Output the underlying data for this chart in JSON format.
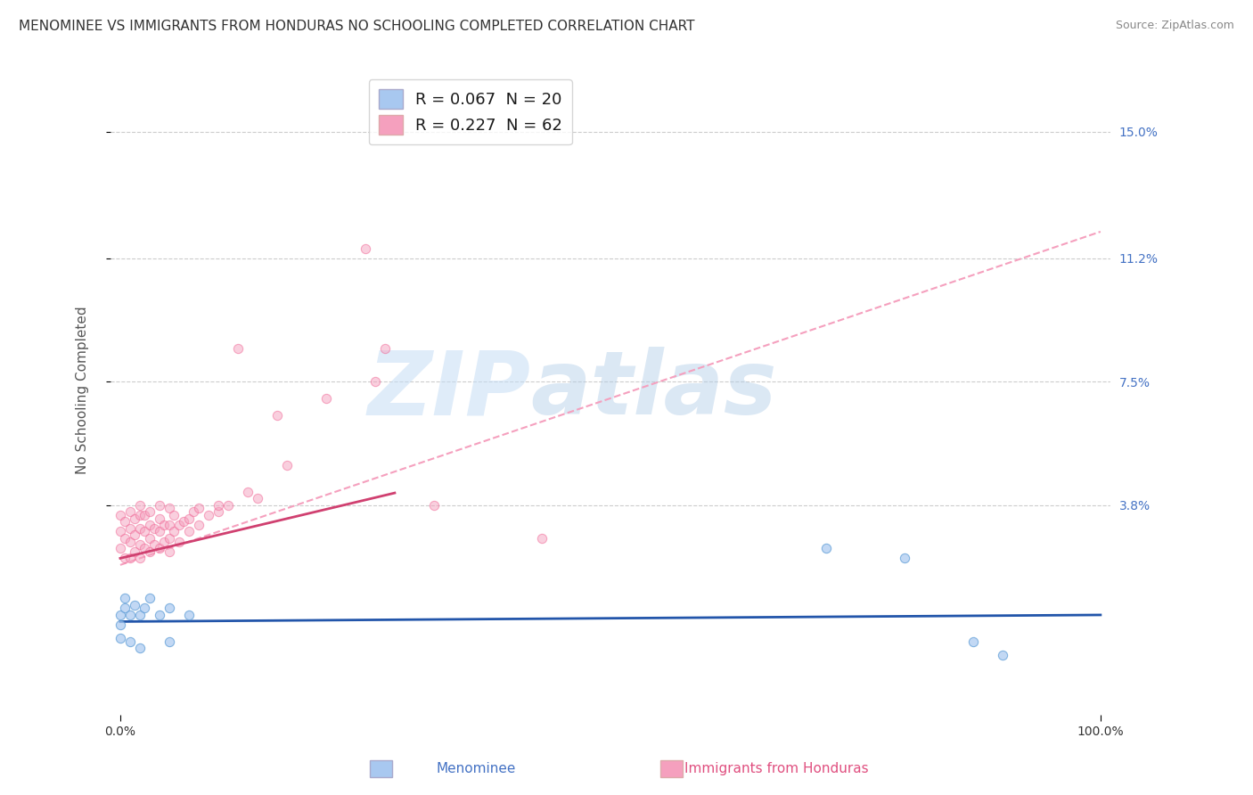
{
  "title": "MENOMINEE VS IMMIGRANTS FROM HONDURAS NO SCHOOLING COMPLETED CORRELATION CHART",
  "source": "Source: ZipAtlas.com",
  "ylabel": "No Schooling Completed",
  "ytick_labels": [
    "15.0%",
    "11.2%",
    "7.5%",
    "3.8%"
  ],
  "ytick_values": [
    0.15,
    0.112,
    0.075,
    0.038
  ],
  "xlim": [
    -0.01,
    1.01
  ],
  "ylim": [
    -0.025,
    0.17
  ],
  "legend_label_blue": "R = 0.067  N = 20",
  "legend_label_pink": "R = 0.227  N = 62",
  "legend_numbers_color": "#1565c0",
  "bottom_label_blue": "Menominee",
  "bottom_label_pink": "Immigrants from Honduras",
  "bottom_label_color_blue": "#4472c4",
  "bottom_label_color_pink": "#e05080",
  "watermark_zip": "ZIP",
  "watermark_atlas": "atlas",
  "watermark_color": "#c8dff5",
  "series_blue": {
    "x": [
      0.0,
      0.0,
      0.0,
      0.005,
      0.005,
      0.01,
      0.01,
      0.015,
      0.02,
      0.02,
      0.025,
      0.03,
      0.04,
      0.05,
      0.05,
      0.07,
      0.72,
      0.8,
      0.87,
      0.9
    ],
    "y": [
      0.005,
      0.002,
      -0.002,
      0.007,
      0.01,
      0.005,
      -0.003,
      0.008,
      0.005,
      -0.005,
      0.007,
      0.01,
      0.005,
      0.007,
      -0.003,
      0.005,
      0.025,
      0.022,
      -0.003,
      -0.007
    ],
    "color": "#a8c8f0",
    "edgecolor": "#5b9bd5",
    "size": 55,
    "alpha": 0.7
  },
  "series_pink": {
    "x": [
      0.0,
      0.0,
      0.0,
      0.005,
      0.005,
      0.005,
      0.01,
      0.01,
      0.01,
      0.01,
      0.015,
      0.015,
      0.015,
      0.02,
      0.02,
      0.02,
      0.02,
      0.02,
      0.025,
      0.025,
      0.025,
      0.03,
      0.03,
      0.03,
      0.03,
      0.035,
      0.035,
      0.04,
      0.04,
      0.04,
      0.04,
      0.045,
      0.045,
      0.05,
      0.05,
      0.05,
      0.05,
      0.055,
      0.055,
      0.06,
      0.06,
      0.065,
      0.07,
      0.07,
      0.075,
      0.08,
      0.08,
      0.09,
      0.1,
      0.1,
      0.11,
      0.12,
      0.13,
      0.14,
      0.16,
      0.17,
      0.21,
      0.25,
      0.26,
      0.27,
      0.32,
      0.43
    ],
    "y": [
      0.025,
      0.03,
      0.035,
      0.022,
      0.028,
      0.033,
      0.022,
      0.027,
      0.031,
      0.036,
      0.024,
      0.029,
      0.034,
      0.022,
      0.026,
      0.031,
      0.035,
      0.038,
      0.025,
      0.03,
      0.035,
      0.024,
      0.028,
      0.032,
      0.036,
      0.026,
      0.031,
      0.025,
      0.03,
      0.034,
      0.038,
      0.027,
      0.032,
      0.024,
      0.028,
      0.032,
      0.037,
      0.03,
      0.035,
      0.027,
      0.032,
      0.033,
      0.03,
      0.034,
      0.036,
      0.032,
      0.037,
      0.035,
      0.036,
      0.038,
      0.038,
      0.085,
      0.042,
      0.04,
      0.065,
      0.05,
      0.07,
      0.115,
      0.075,
      0.085,
      0.038,
      0.028
    ],
    "color": "#f5a0be",
    "edgecolor": "#f06090",
    "size": 55,
    "alpha": 0.5
  },
  "trendline_blue_solid": {
    "x_start": 0.0,
    "x_end": 1.0,
    "slope": 0.002,
    "intercept": 0.003,
    "color": "#2255aa",
    "linewidth": 2.0
  },
  "trendline_pink_solid": {
    "x_start": 0.0,
    "x_end": 0.28,
    "slope": 0.07,
    "intercept": 0.022,
    "color": "#d04070",
    "linewidth": 2.0
  },
  "trendline_pink_dashed": {
    "x_start": 0.0,
    "x_end": 1.0,
    "slope": 0.1,
    "intercept": 0.02,
    "color": "#f5a0be",
    "linewidth": 1.5,
    "linestyle": "--"
  },
  "bg_color": "#ffffff",
  "grid_color": "#cccccc",
  "title_fontsize": 11,
  "axis_label_fontsize": 11
}
